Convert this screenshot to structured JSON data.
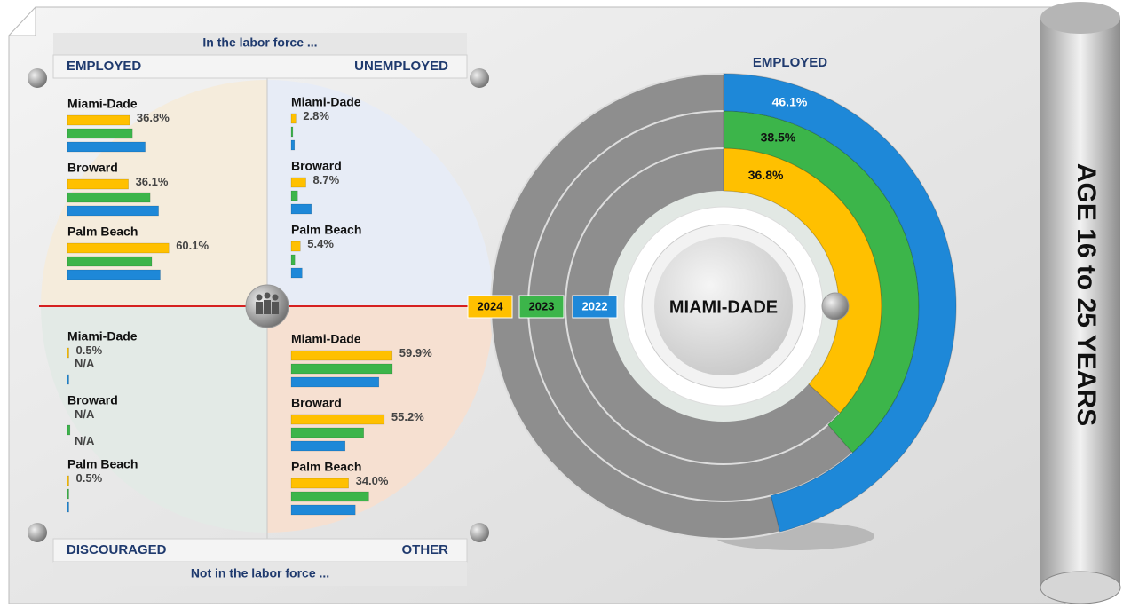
{
  "header": {
    "top": "In the labor force ...",
    "bottom": "Not in the labor force ..."
  },
  "side_title": "AGE 16 to 25 YEARS",
  "center_label": "MIAMI-DADE",
  "legend": [
    {
      "name": "2024",
      "color": "#ffc000"
    },
    {
      "name": "2023",
      "color": "#3cb54a"
    },
    {
      "name": "2022",
      "color": "#1e88d8"
    }
  ],
  "chart_data": [
    {
      "type": "bar",
      "title": "EMPLOYED",
      "categories": [
        "Miami-Dade",
        "Broward",
        "Palm Beach"
      ],
      "series": [
        {
          "values": [
            36.8,
            36.1,
            60.1
          ],
          "value_labels": [
            "36.8%",
            "36.1%",
            "60.1%"
          ]
        },
        {
          "values": [
            38.5,
            49,
            50
          ]
        },
        {
          "values": [
            46.1,
            54,
            55
          ]
        }
      ]
    },
    {
      "type": "bar",
      "title": "UNEMPLOYED",
      "categories": [
        "Miami-Dade",
        "Broward",
        "Palm Beach"
      ],
      "series": [
        {
          "values": [
            2.8,
            8.7,
            5.4
          ],
          "value_labels": [
            "2.8%",
            "8.7%",
            "5.4%"
          ]
        },
        {
          "values": [
            1.0,
            3.8,
            2.2
          ]
        },
        {
          "values": [
            2.0,
            12,
            6.5
          ]
        }
      ]
    },
    {
      "type": "bar",
      "title": "DISCOURAGED",
      "categories": [
        "Miami-Dade",
        "Broward",
        "Palm Beach"
      ],
      "series": [
        {
          "values": [
            0.5,
            null,
            0.5
          ],
          "value_labels": [
            "0.5%",
            "N/A",
            "0.5%"
          ]
        },
        {
          "values": [
            null,
            1.5,
            0.7
          ],
          "value_labels": [
            "N/A",
            null,
            null
          ]
        },
        {
          "values": [
            0.3,
            null,
            0.3
          ],
          "value_labels": [
            null,
            "N/A",
            null
          ]
        }
      ]
    },
    {
      "type": "bar",
      "title": "OTHER",
      "categories": [
        "Miami-Dade",
        "Broward",
        "Palm Beach"
      ],
      "series": [
        {
          "values": [
            59.9,
            55.2,
            34.0
          ],
          "value_labels": [
            "59.9%",
            "55.2%",
            "34.0%"
          ]
        },
        {
          "values": [
            60,
            43,
            46
          ]
        },
        {
          "values": [
            52,
            32,
            38
          ]
        }
      ]
    },
    {
      "type": "radial",
      "title": "EMPLOYED",
      "values": [
        36.8,
        38.5,
        46.1
      ],
      "value_labels": [
        "36.8%",
        "38.5%",
        "46.1%"
      ],
      "colors": [
        "#ffc000",
        "#3cb54a",
        "#1e88d8"
      ]
    }
  ]
}
